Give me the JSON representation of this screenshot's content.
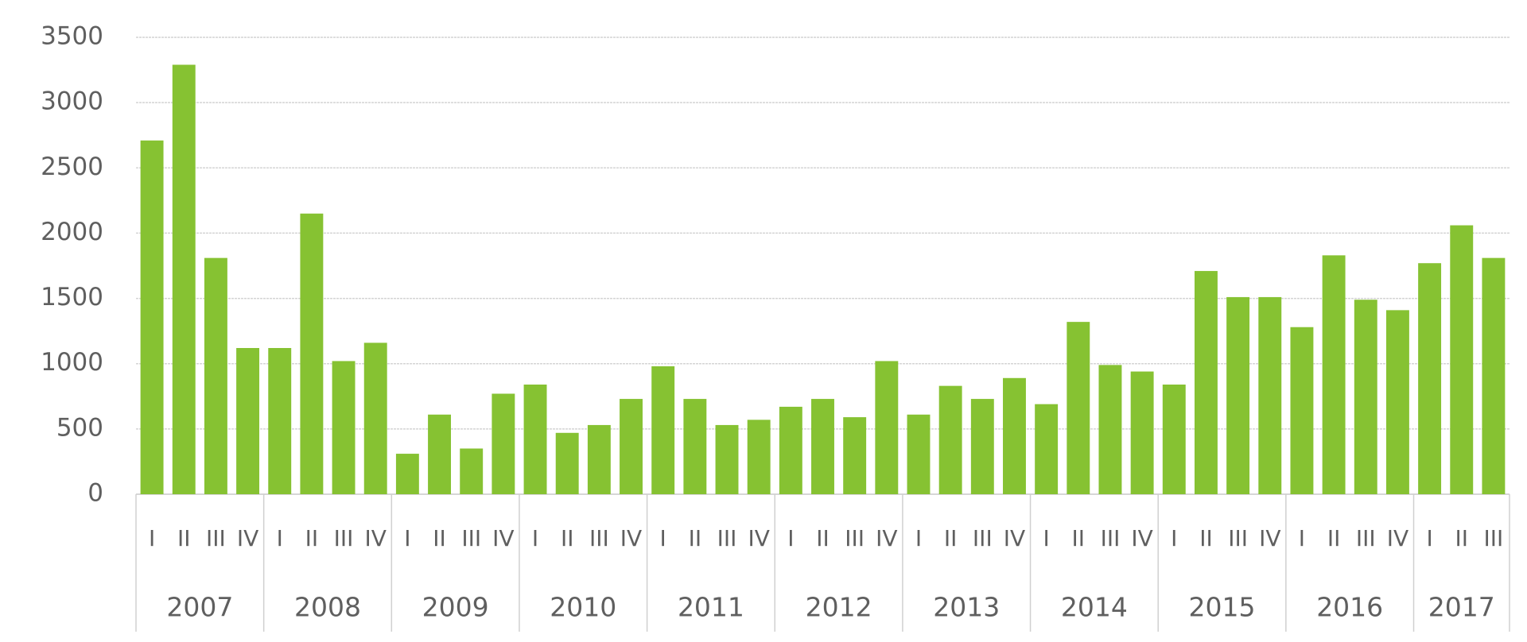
{
  "chart_data": {
    "type": "bar",
    "categories": [
      "I",
      "II",
      "III",
      "IV",
      "I",
      "II",
      "III",
      "IV",
      "I",
      "II",
      "III",
      "IV",
      "I",
      "II",
      "III",
      "IV",
      "I",
      "II",
      "III",
      "IV",
      "I",
      "II",
      "III",
      "IV",
      "I",
      "II",
      "III",
      "IV",
      "I",
      "II",
      "III",
      "IV",
      "I",
      "II",
      "III",
      "IV",
      "I",
      "II",
      "III",
      "IV",
      "I",
      "II",
      "III"
    ],
    "groups": [
      "2007",
      "2008",
      "2009",
      "2010",
      "2011",
      "2012",
      "2013",
      "2014",
      "2015",
      "2016",
      "2017"
    ],
    "values": [
      2710,
      3290,
      1810,
      1120,
      1120,
      2150,
      1020,
      1160,
      310,
      610,
      350,
      770,
      840,
      470,
      530,
      730,
      980,
      730,
      530,
      570,
      670,
      730,
      590,
      1020,
      610,
      830,
      730,
      890,
      690,
      1320,
      990,
      940,
      840,
      1710,
      1510,
      1510,
      1280,
      1830,
      1490,
      1410,
      1770,
      2060,
      1810
    ],
    "color": "#86c232",
    "ylim": [
      0,
      3500
    ],
    "yticks": [
      0,
      500,
      1000,
      1500,
      2000,
      2500,
      3000,
      3500
    ],
    "grid": true
  }
}
